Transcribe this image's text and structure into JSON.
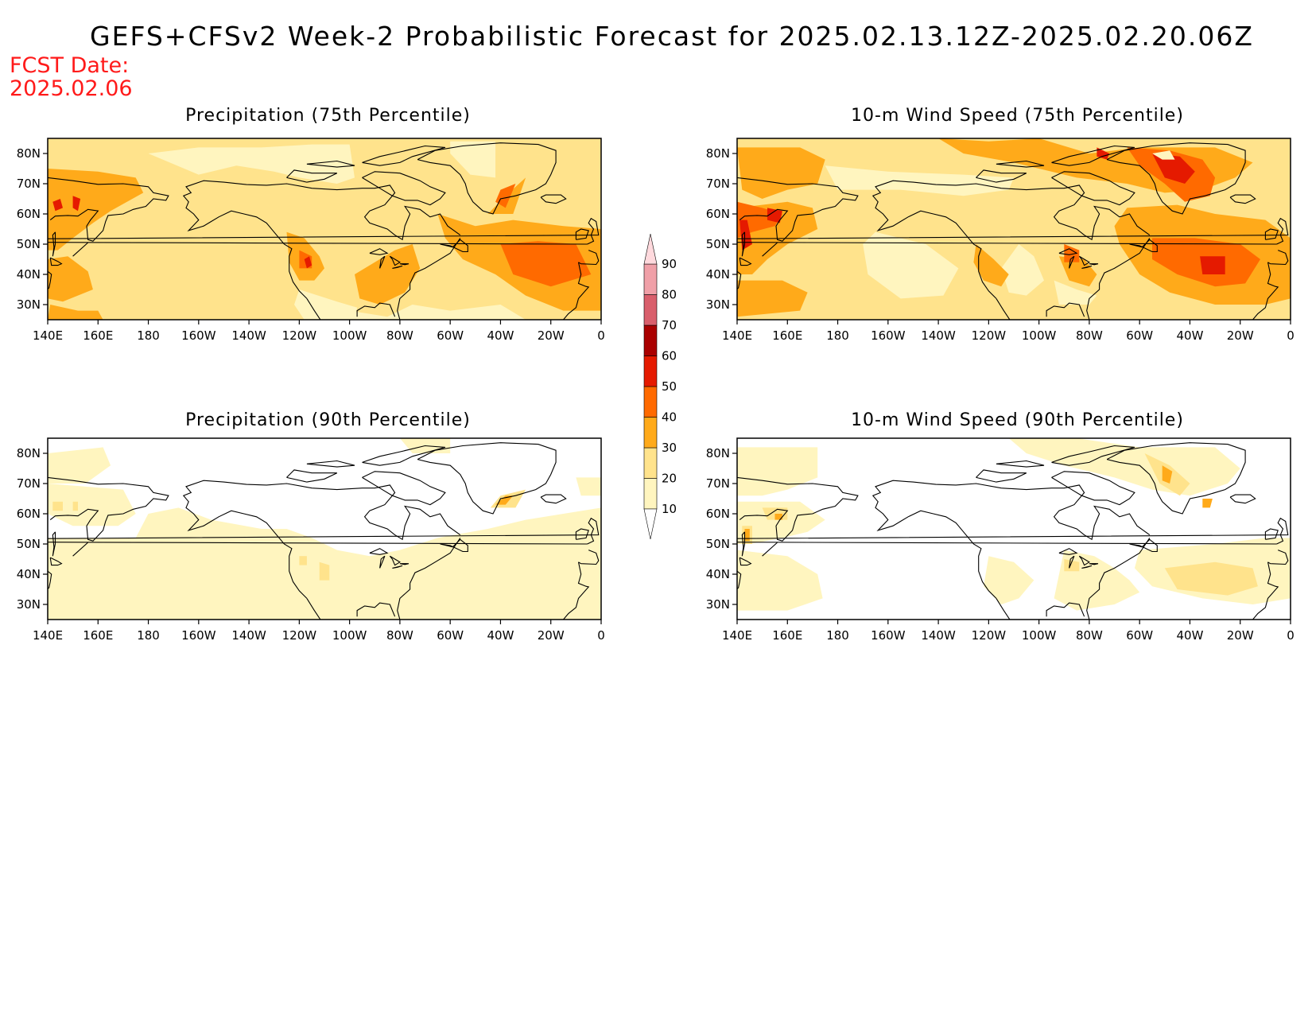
{
  "header": {
    "title": "GEFS+CFSv2 Week-2 Probabilistic Forecast for 2025.02.13.12Z-2025.02.20.06Z",
    "fcst_label": "FCST Date:",
    "fcst_date": "2025.02.06"
  },
  "panels": [
    {
      "title": "Precipitation (75th Percentile)"
    },
    {
      "title": "10-m Wind Speed (75th Percentile)"
    },
    {
      "title": "Precipitation (90th Percentile)"
    },
    {
      "title": "10-m Wind Speed (90th Percentile)"
    }
  ],
  "axes": {
    "lon_labels": [
      "140E",
      "160E",
      "180",
      "160W",
      "140W",
      "120W",
      "100W",
      "80W",
      "60W",
      "40W",
      "20W",
      "0"
    ],
    "lat_labels": [
      "80N",
      "70N",
      "60N",
      "50N",
      "40N",
      "30N"
    ]
  },
  "colorbar": {
    "levels": [
      "10",
      "20",
      "30",
      "40",
      "50",
      "60",
      "70",
      "80",
      "90"
    ],
    "colors": [
      "#fff5bf",
      "#ffe38c",
      "#ffaa1a",
      "#ff6a00",
      "#e51a00",
      "#aa0000",
      "#d95f6c",
      "#f0a0a8",
      "#ffd9dd"
    ]
  },
  "region_colors": {
    "light": "#fff5bf",
    "pale": "#ffe38c",
    "orange": "#ffaa1a",
    "dark_orange": "#ff6a00",
    "red": "#e51a00"
  }
}
